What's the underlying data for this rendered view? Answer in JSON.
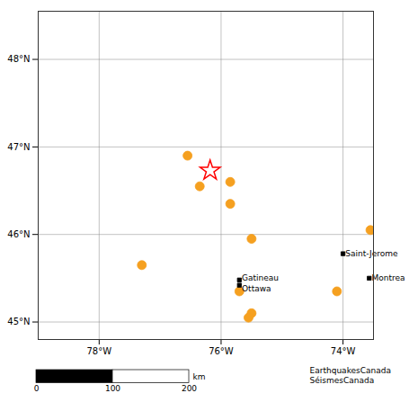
{
  "chart_data": {
    "type": "scatter",
    "xlim": [
      -79.0,
      -73.5
    ],
    "ylim": [
      44.8,
      48.55
    ],
    "xticks": [
      {
        "value": -78,
        "label": "78°W"
      },
      {
        "value": -76,
        "label": "76°W"
      },
      {
        "value": -74,
        "label": "74°W"
      }
    ],
    "yticks": [
      {
        "value": 45,
        "label": "45°N"
      },
      {
        "value": 46,
        "label": "46°N"
      },
      {
        "value": 47,
        "label": "47°N"
      },
      {
        "value": 48,
        "label": "48°N"
      }
    ],
    "grid": true,
    "series": [
      {
        "marker": "circle",
        "color": "#f5a020",
        "x": [
          -76.55,
          -76.35,
          -75.85,
          -75.5,
          -77.3,
          -75.5,
          -73.55,
          -75.7,
          -75.85,
          -74.1,
          -75.55
        ],
        "y": [
          46.9,
          46.55,
          46.35,
          45.95,
          45.65,
          45.1,
          46.05,
          45.35,
          46.6,
          45.35,
          45.05
        ]
      },
      {
        "marker": "star",
        "color": "red",
        "x": [
          -76.18
        ],
        "y": [
          46.73
        ]
      },
      {
        "marker": "square",
        "color": "black",
        "x": [
          -75.7,
          -75.7,
          -73.57,
          -74.0
        ],
        "y": [
          45.42,
          45.48,
          45.5,
          45.78
        ]
      }
    ],
    "annotations": [
      {
        "text": "Ottawa",
        "x": -75.66,
        "y": 45.38
      },
      {
        "text": "Gatineau",
        "x": -75.66,
        "y": 45.5
      },
      {
        "text": "Montrea",
        "x": -73.53,
        "y": 45.5
      },
      {
        "text": "Saint-Jerome",
        "x": -73.96,
        "y": 45.78
      }
    ],
    "scalebar": {
      "ticks": [
        0,
        100,
        200
      ],
      "unit": "km"
    },
    "caption": "EarthquakesCanada\nSéismesCanada"
  }
}
